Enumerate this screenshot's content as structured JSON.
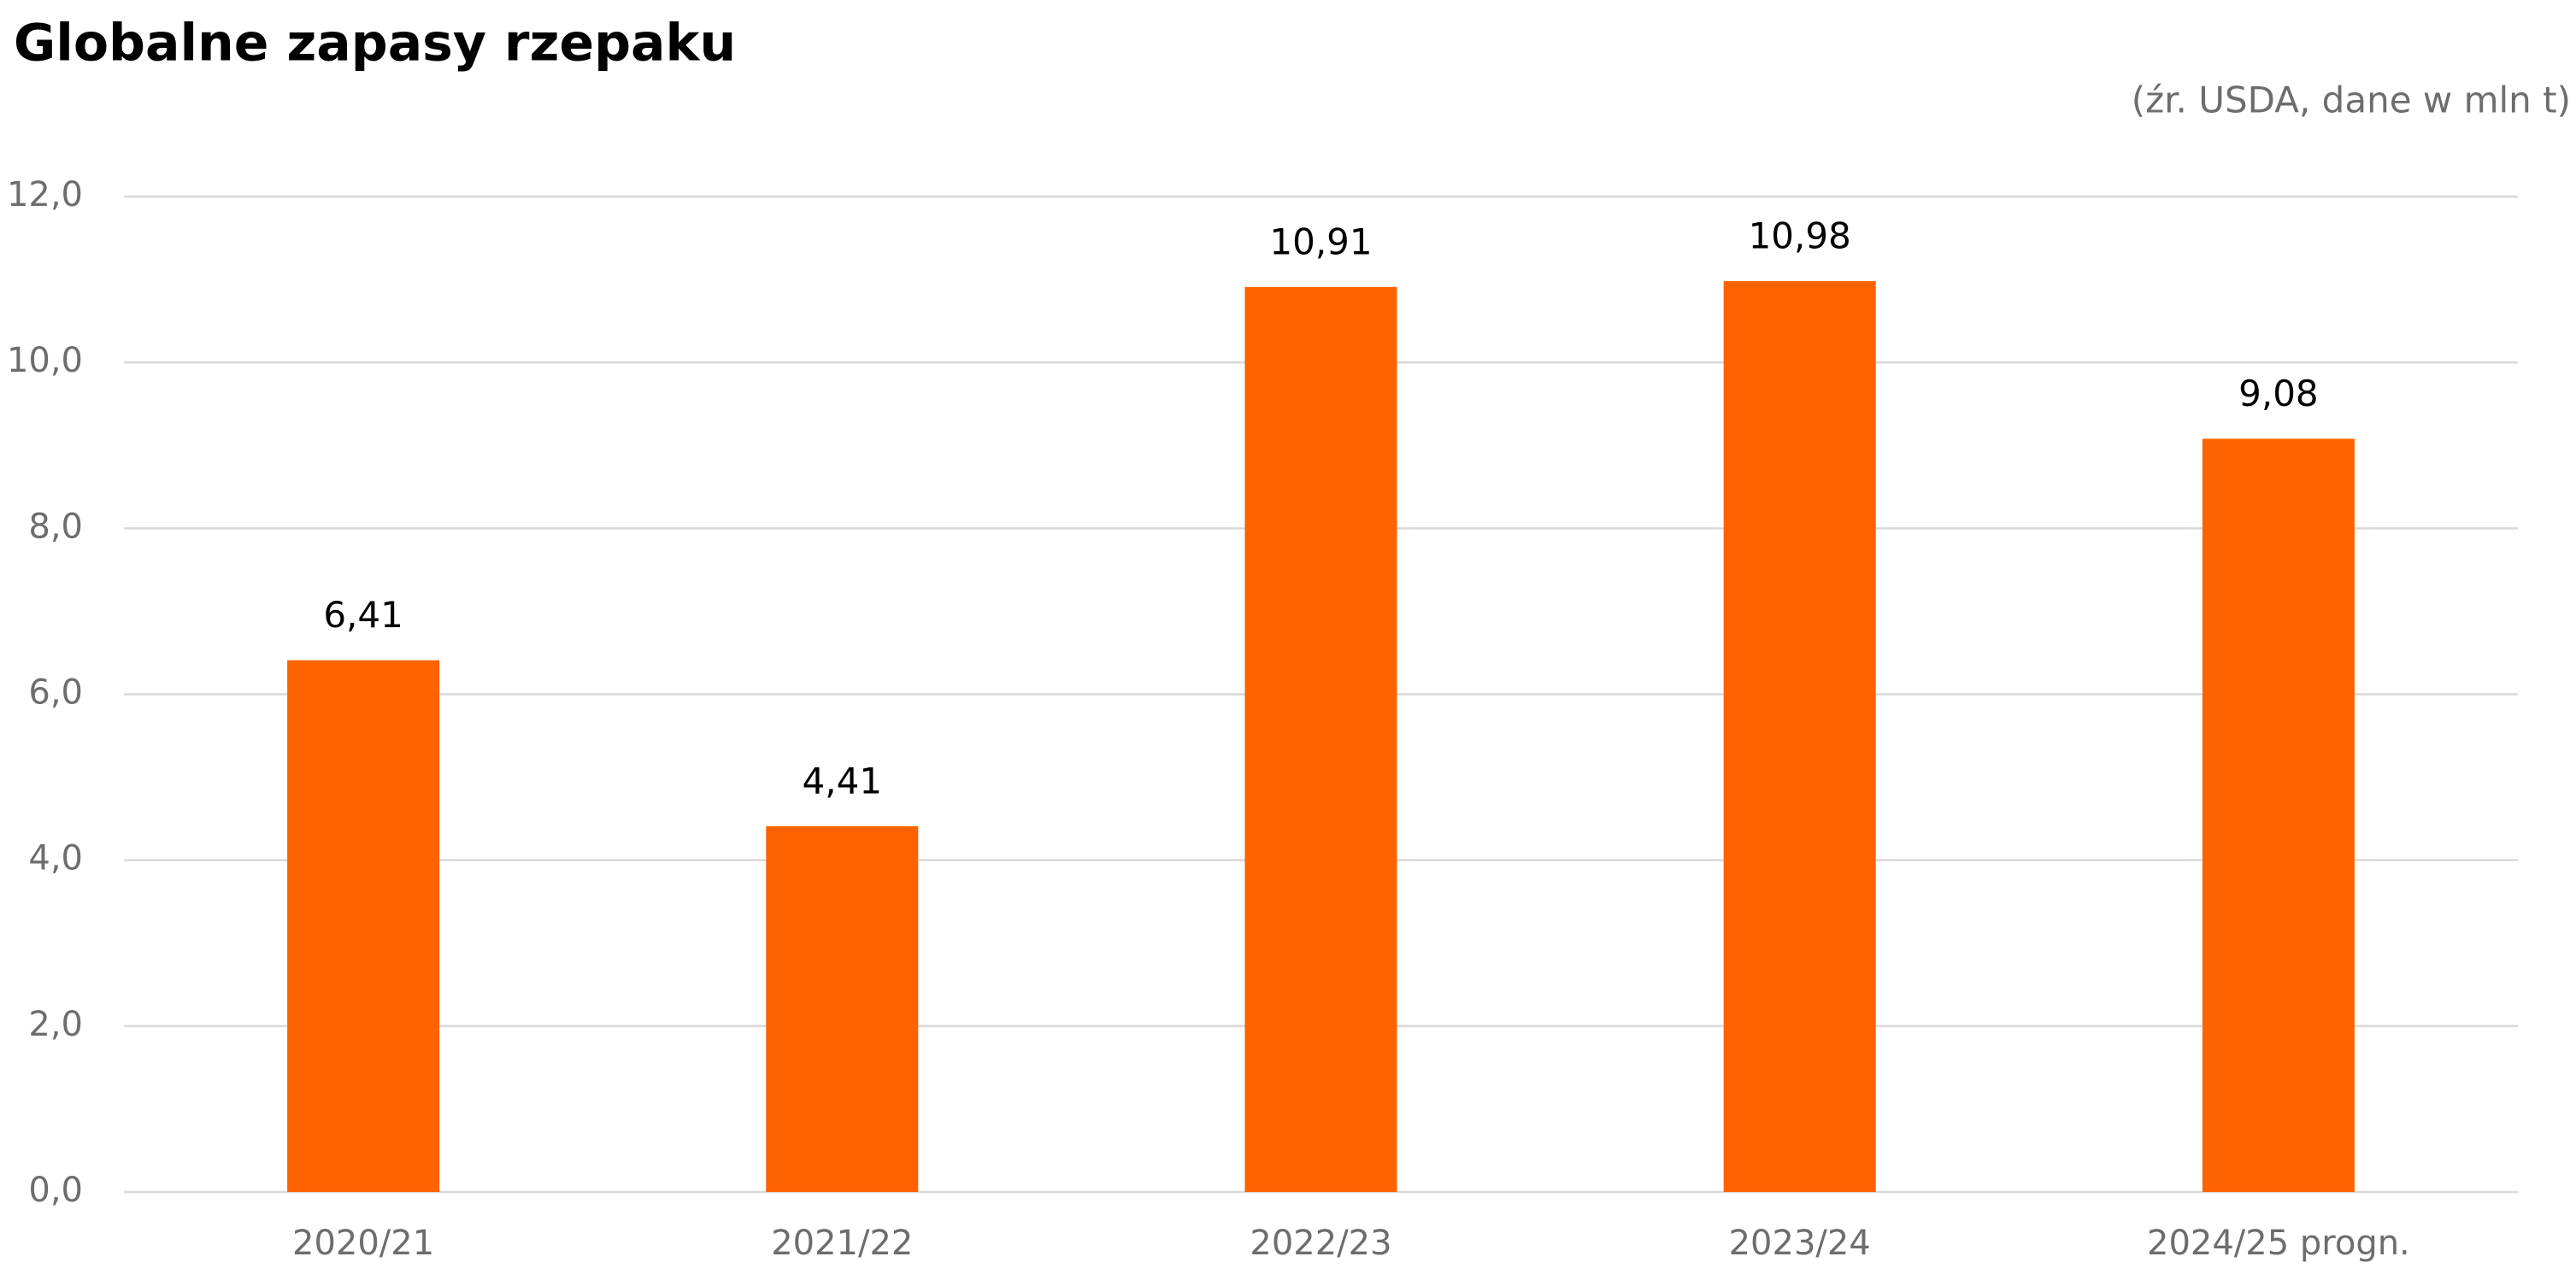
{
  "chart_data": {
    "type": "bar",
    "title": "Globalne zapasy rzepaku",
    "subtitle": "(źr. USDA, dane w mln t)",
    "categories": [
      "2020/21",
      "2021/22",
      "2022/23",
      "2023/24",
      "2024/25 progn."
    ],
    "values": [
      6.41,
      4.41,
      10.91,
      10.98,
      9.08
    ],
    "value_labels": [
      "6,41",
      "4,41",
      "10,91",
      "10,98",
      "9,08"
    ],
    "color": "#ff6200",
    "ylim": [
      0,
      12
    ],
    "yticks": [
      {
        "value": 0,
        "label": "0,0"
      },
      {
        "value": 2,
        "label": "2,0"
      },
      {
        "value": 4,
        "label": "4,0"
      },
      {
        "value": 6,
        "label": "6,0"
      },
      {
        "value": 8,
        "label": "8,0"
      },
      {
        "value": 10,
        "label": "10,0"
      },
      {
        "value": 12,
        "label": "12,0"
      }
    ],
    "grid": true
  }
}
